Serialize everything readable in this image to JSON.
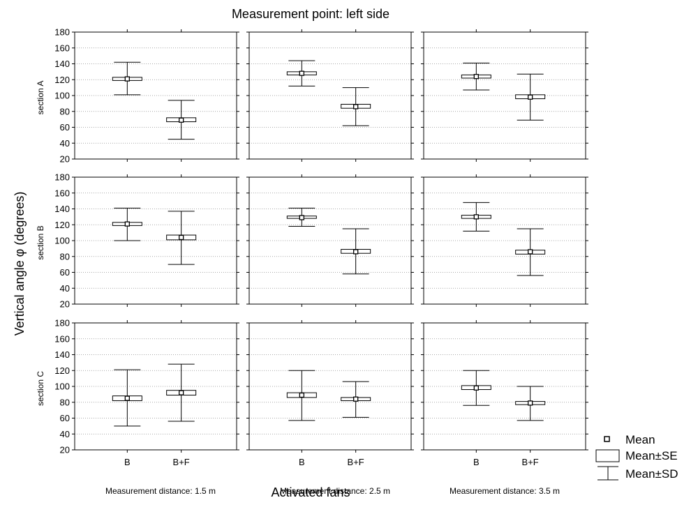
{
  "chart_data": {
    "type": "box",
    "title": "Measurement point: left side",
    "ylabel": "Vertical angle φ (degrees)",
    "xlabel": "Activated fans",
    "ylim": [
      20,
      180
    ],
    "yticks": [
      20,
      40,
      60,
      80,
      100,
      120,
      140,
      160,
      180
    ],
    "grid": true,
    "categories": [
      "B",
      "B+F"
    ],
    "row_labels": [
      "section A",
      "section B",
      "section C"
    ],
    "column_labels": [
      "Measurement distance: 1.5 m",
      "Measurement distance: 2.5 m",
      "Measurement distance: 3.5 m"
    ],
    "legend": {
      "position": "bottom-right",
      "items": [
        "Mean",
        "Mean±SE",
        "Mean±SD"
      ]
    },
    "panels": [
      {
        "row": "section A",
        "column": "Measurement distance: 1.5 m",
        "boxes": [
          {
            "category": "B",
            "mean": 121,
            "se_low": 119,
            "se_high": 123,
            "sd_low": 101,
            "sd_high": 142
          },
          {
            "category": "B+F",
            "mean": 69,
            "se_low": 67,
            "se_high": 72,
            "sd_low": 45,
            "sd_high": 94
          }
        ]
      },
      {
        "row": "section A",
        "column": "Measurement distance: 2.5 m",
        "boxes": [
          {
            "category": "B",
            "mean": 128,
            "se_low": 126,
            "se_high": 130,
            "sd_low": 112,
            "sd_high": 144
          },
          {
            "category": "B+F",
            "mean": 86,
            "se_low": 84,
            "se_high": 89,
            "sd_low": 62,
            "sd_high": 110
          }
        ]
      },
      {
        "row": "section A",
        "column": "Measurement distance: 3.5 m",
        "boxes": [
          {
            "category": "B",
            "mean": 124,
            "se_low": 122,
            "se_high": 126,
            "sd_low": 107,
            "sd_high": 141
          },
          {
            "category": "B+F",
            "mean": 98,
            "se_low": 96,
            "se_high": 101,
            "sd_low": 69,
            "sd_high": 127
          }
        ]
      },
      {
        "row": "section B",
        "column": "Measurement distance: 1.5 m",
        "boxes": [
          {
            "category": "B",
            "mean": 121,
            "se_low": 119,
            "se_high": 123,
            "sd_low": 100,
            "sd_high": 141
          },
          {
            "category": "B+F",
            "mean": 104,
            "se_low": 101,
            "se_high": 107,
            "sd_low": 70,
            "sd_high": 137
          }
        ]
      },
      {
        "row": "section B",
        "column": "Measurement distance: 2.5 m",
        "boxes": [
          {
            "category": "B",
            "mean": 129,
            "se_low": 128,
            "se_high": 131,
            "sd_low": 118,
            "sd_high": 141
          },
          {
            "category": "B+F",
            "mean": 86,
            "se_low": 84,
            "se_high": 89,
            "sd_low": 58,
            "sd_high": 115
          }
        ]
      },
      {
        "row": "section B",
        "column": "Measurement distance: 3.5 m",
        "boxes": [
          {
            "category": "B",
            "mean": 130,
            "se_low": 128,
            "se_high": 132,
            "sd_low": 112,
            "sd_high": 148
          },
          {
            "category": "B+F",
            "mean": 86,
            "se_low": 83,
            "se_high": 88,
            "sd_low": 56,
            "sd_high": 115
          }
        ]
      },
      {
        "row": "section C",
        "column": "Measurement distance: 1.5 m",
        "boxes": [
          {
            "category": "B",
            "mean": 85,
            "se_low": 82,
            "se_high": 88,
            "sd_low": 50,
            "sd_high": 121
          },
          {
            "category": "B+F",
            "mean": 92,
            "se_low": 89,
            "se_high": 95,
            "sd_low": 56,
            "sd_high": 128
          }
        ]
      },
      {
        "row": "section C",
        "column": "Measurement distance: 2.5 m",
        "boxes": [
          {
            "category": "B",
            "mean": 89,
            "se_low": 86,
            "se_high": 92,
            "sd_low": 57,
            "sd_high": 120
          },
          {
            "category": "B+F",
            "mean": 84,
            "se_low": 82,
            "se_high": 86,
            "sd_low": 61,
            "sd_high": 106
          }
        ]
      },
      {
        "row": "section C",
        "column": "Measurement distance: 3.5 m",
        "boxes": [
          {
            "category": "B",
            "mean": 98,
            "se_low": 96,
            "se_high": 101,
            "sd_low": 76,
            "sd_high": 120
          },
          {
            "category": "B+F",
            "mean": 79,
            "se_low": 77,
            "se_high": 81,
            "sd_low": 57,
            "sd_high": 100
          }
        ]
      }
    ]
  }
}
